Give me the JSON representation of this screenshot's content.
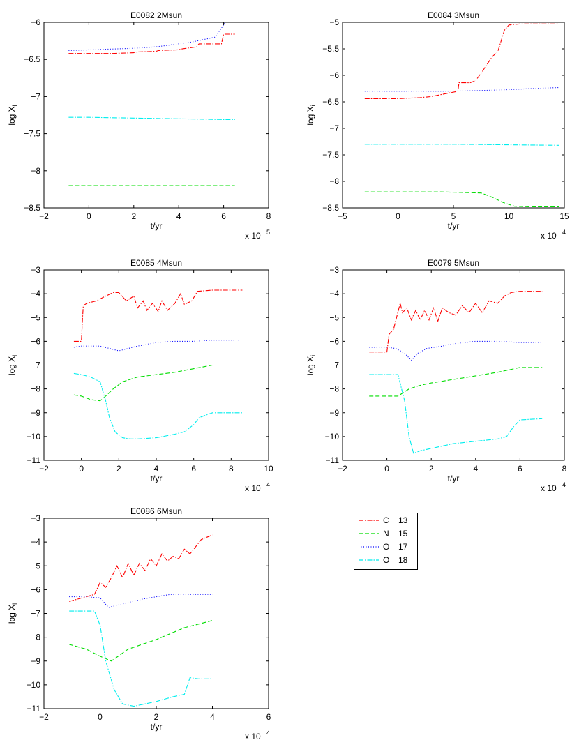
{
  "chart_data": [
    {
      "type": "line",
      "title": "E0082 2Msun",
      "xlabel": "t/yr",
      "ylabel": "log X",
      "ylabel_sub": "i",
      "x_multiplier": "x 10",
      "x_exponent": "5",
      "xlim": [
        -2,
        8
      ],
      "ylim": [
        -8.5,
        -6
      ],
      "xticks": [
        -2,
        0,
        2,
        4,
        6,
        8
      ],
      "yticks": [
        -8.5,
        -8,
        -7.5,
        -7,
        -6.5,
        -6
      ],
      "series": [
        {
          "name": "C 13",
          "x": [
            -0.9,
            0,
            1,
            2,
            2.1,
            3,
            3.1,
            4,
            4.1,
            4.8,
            4.9,
            5.9,
            6,
            6.5
          ],
          "y": [
            -6.42,
            -6.42,
            -6.42,
            -6.41,
            -6.4,
            -6.39,
            -6.38,
            -6.37,
            -6.36,
            -6.33,
            -6.29,
            -6.29,
            -6.16,
            -6.16
          ]
        },
        {
          "name": "N 15",
          "x": [
            -0.9,
            0,
            2,
            4,
            6,
            6.5
          ],
          "y": [
            -8.2,
            -8.2,
            -8.2,
            -8.2,
            -8.2,
            -8.2
          ]
        },
        {
          "name": "O 17",
          "x": [
            -0.9,
            0,
            1,
            2,
            3,
            3.5,
            4.5,
            5,
            5.6,
            5.8,
            6.1,
            6.5
          ],
          "y": [
            -6.38,
            -6.37,
            -6.36,
            -6.35,
            -6.33,
            -6.31,
            -6.27,
            -6.24,
            -6.2,
            -6.12,
            -5.99,
            -5.93
          ]
        },
        {
          "name": "O 18",
          "x": [
            -0.9,
            0,
            2,
            4,
            6,
            6.5
          ],
          "y": [
            -7.28,
            -7.28,
            -7.29,
            -7.3,
            -7.31,
            -7.31
          ]
        }
      ]
    },
    {
      "type": "line",
      "title": "E0084 3Msun",
      "xlabel": "t/yr",
      "ylabel": "log X",
      "ylabel_sub": "i",
      "x_multiplier": "x 10",
      "x_exponent": "4",
      "xlim": [
        -5,
        15
      ],
      "ylim": [
        -8.5,
        -5
      ],
      "xticks": [
        -5,
        0,
        5,
        10,
        15
      ],
      "yticks": [
        -8.5,
        -8,
        -7.5,
        -7,
        -6.5,
        -6,
        -5.5,
        -5
      ],
      "series": [
        {
          "name": "C 13",
          "x": [
            -3,
            0,
            2,
            3,
            5.4,
            5.5,
            6.5,
            7,
            7.6,
            8,
            8.5,
            9,
            9.3,
            9.6,
            10,
            11,
            14.5
          ],
          "y": [
            -6.44,
            -6.44,
            -6.42,
            -6.4,
            -6.3,
            -6.14,
            -6.14,
            -6.1,
            -5.93,
            -5.8,
            -5.65,
            -5.55,
            -5.35,
            -5.15,
            -5.05,
            -5.03,
            -5.03
          ]
        },
        {
          "name": "N 15",
          "x": [
            -3,
            0,
            4,
            7.5,
            8.5,
            9.5,
            10.5,
            12,
            14.5
          ],
          "y": [
            -8.2,
            -8.2,
            -8.2,
            -8.22,
            -8.3,
            -8.4,
            -8.47,
            -8.48,
            -8.48
          ]
        },
        {
          "name": "O 17",
          "x": [
            -3,
            0,
            4,
            7,
            10,
            12,
            14.5
          ],
          "y": [
            -6.3,
            -6.3,
            -6.3,
            -6.29,
            -6.27,
            -6.25,
            -6.23
          ]
        },
        {
          "name": "O 18",
          "x": [
            -3,
            0,
            5,
            10,
            14.5
          ],
          "y": [
            -7.3,
            -7.3,
            -7.3,
            -7.31,
            -7.32
          ]
        }
      ]
    },
    {
      "type": "line",
      "title": "E0085 4Msun",
      "xlabel": "t/yr",
      "ylabel": "log X",
      "ylabel_sub": "i",
      "x_multiplier": "x 10",
      "x_exponent": "4",
      "xlim": [
        -2,
        10
      ],
      "ylim": [
        -11,
        -3
      ],
      "xticks": [
        -2,
        0,
        2,
        4,
        6,
        8,
        10
      ],
      "yticks": [
        -11,
        -10,
        -9,
        -8,
        -7,
        -6,
        -5,
        -4,
        -3
      ],
      "series": [
        {
          "name": "C 13",
          "x": [
            -0.4,
            0,
            0.05,
            0.1,
            0.3,
            0.8,
            1.3,
            1.7,
            2.0,
            2.4,
            2.8,
            3.0,
            3.3,
            3.5,
            3.8,
            4.1,
            4.3,
            4.6,
            5,
            5.3,
            5.5,
            5.9,
            6.2,
            7,
            8,
            8.6
          ],
          "y": [
            -6.0,
            -6.0,
            -5.2,
            -4.5,
            -4.4,
            -4.3,
            -4.1,
            -3.95,
            -3.95,
            -4.3,
            -4.1,
            -4.6,
            -4.3,
            -4.7,
            -4.4,
            -4.75,
            -4.3,
            -4.7,
            -4.4,
            -4.0,
            -4.45,
            -4.3,
            -3.9,
            -3.85,
            -3.85,
            -3.85
          ]
        },
        {
          "name": "N 15",
          "x": [
            -0.4,
            0,
            0.5,
            1,
            1.3,
            1.7,
            2.2,
            3,
            5,
            7,
            8.6
          ],
          "y": [
            -8.25,
            -8.3,
            -8.45,
            -8.5,
            -8.3,
            -8.0,
            -7.7,
            -7.5,
            -7.3,
            -7.0,
            -7.0
          ]
        },
        {
          "name": "O 17",
          "x": [
            -0.4,
            0,
            1,
            2,
            3,
            4,
            5,
            6,
            7,
            8.6
          ],
          "y": [
            -6.25,
            -6.2,
            -6.2,
            -6.4,
            -6.2,
            -6.05,
            -6.0,
            -6.0,
            -5.95,
            -5.95
          ]
        },
        {
          "name": "O 18",
          "x": [
            -0.4,
            0,
            0.5,
            1.0,
            1.3,
            1.5,
            1.8,
            2.2,
            2.6,
            3,
            4,
            5,
            5.5,
            6,
            6.3,
            7,
            8.6
          ],
          "y": [
            -7.35,
            -7.4,
            -7.5,
            -7.7,
            -8.5,
            -9.2,
            -9.8,
            -10.05,
            -10.1,
            -10.1,
            -10.05,
            -9.9,
            -9.8,
            -9.5,
            -9.2,
            -9.0,
            -9.0
          ]
        }
      ]
    },
    {
      "type": "line",
      "title": "E0079 5Msun",
      "xlabel": "t/yr",
      "ylabel": "log X",
      "ylabel_sub": "i",
      "x_multiplier": "x 10",
      "x_exponent": "4",
      "xlim": [
        -2,
        8
      ],
      "ylim": [
        -11,
        -3
      ],
      "xticks": [
        -2,
        0,
        2,
        4,
        6,
        8
      ],
      "yticks": [
        -11,
        -10,
        -9,
        -8,
        -7,
        -6,
        -5,
        -4,
        -3
      ],
      "series": [
        {
          "name": "C 13",
          "x": [
            -0.8,
            0,
            0.1,
            0.3,
            0.6,
            0.7,
            0.9,
            1.1,
            1.3,
            1.5,
            1.7,
            1.9,
            2.1,
            2.3,
            2.5,
            2.8,
            3.1,
            3.4,
            3.7,
            4.0,
            4.3,
            4.6,
            5.0,
            5.3,
            5.6,
            6,
            7
          ],
          "y": [
            -6.45,
            -6.45,
            -5.7,
            -5.5,
            -4.4,
            -4.8,
            -4.6,
            -5.1,
            -4.7,
            -5.1,
            -4.7,
            -5.1,
            -4.6,
            -5.15,
            -4.6,
            -4.8,
            -4.9,
            -4.5,
            -4.8,
            -4.4,
            -4.8,
            -4.3,
            -4.4,
            -4.1,
            -3.95,
            -3.9,
            -3.9
          ]
        },
        {
          "name": "N 15",
          "x": [
            -0.8,
            0,
            0.5,
            1,
            1.5,
            2,
            3,
            4,
            5,
            6,
            7
          ],
          "y": [
            -8.3,
            -8.3,
            -8.3,
            -8.0,
            -7.85,
            -7.75,
            -7.6,
            -7.45,
            -7.3,
            -7.1,
            -7.1
          ]
        },
        {
          "name": "O 17",
          "x": [
            -0.8,
            0,
            0.4,
            0.8,
            1.1,
            1.4,
            1.8,
            2.5,
            3,
            4,
            5,
            6,
            7
          ],
          "y": [
            -6.25,
            -6.25,
            -6.3,
            -6.5,
            -6.8,
            -6.5,
            -6.3,
            -6.2,
            -6.1,
            -6.0,
            -6.0,
            -6.05,
            -6.05
          ]
        },
        {
          "name": "O 18",
          "x": [
            -0.8,
            0,
            0.5,
            0.8,
            1.0,
            1.2,
            1.5,
            2,
            3,
            4,
            5,
            5.4,
            5.7,
            6,
            7
          ],
          "y": [
            -7.4,
            -7.4,
            -7.4,
            -8.5,
            -10.0,
            -10.7,
            -10.6,
            -10.5,
            -10.3,
            -10.2,
            -10.1,
            -10.0,
            -9.6,
            -9.3,
            -9.25
          ]
        }
      ]
    },
    {
      "type": "line",
      "title": "E0086 6Msun",
      "xlabel": "t/yr",
      "ylabel": "log X",
      "ylabel_sub": "i",
      "x_multiplier": "x 10",
      "x_exponent": "4",
      "xlim": [
        -2,
        6
      ],
      "ylim": [
        -11,
        -3
      ],
      "xticks": [
        -2,
        0,
        2,
        4,
        6
      ],
      "yticks": [
        -11,
        -10,
        -9,
        -8,
        -7,
        -6,
        -5,
        -4,
        -3
      ],
      "series": [
        {
          "name": "C 13",
          "x": [
            -1.1,
            -0.5,
            -0.2,
            0,
            0.2,
            0.4,
            0.6,
            0.8,
            1.0,
            1.2,
            1.4,
            1.6,
            1.8,
            2.0,
            2.2,
            2.4,
            2.6,
            2.8,
            3.0,
            3.2,
            3.4,
            3.6,
            4.0
          ],
          "y": [
            -6.5,
            -6.3,
            -6.2,
            -5.7,
            -5.9,
            -5.5,
            -5.0,
            -5.5,
            -4.9,
            -5.4,
            -4.9,
            -5.2,
            -4.7,
            -5.0,
            -4.5,
            -4.8,
            -4.6,
            -4.7,
            -4.3,
            -4.5,
            -4.2,
            -3.9,
            -3.7
          ]
        },
        {
          "name": "N 15",
          "x": [
            -1.1,
            -0.5,
            0,
            0.4,
            1,
            2,
            3,
            4
          ],
          "y": [
            -8.3,
            -8.5,
            -8.8,
            -9.0,
            -8.5,
            -8.1,
            -7.6,
            -7.3
          ]
        },
        {
          "name": "O 17",
          "x": [
            -1.1,
            -0.5,
            0,
            0.3,
            0.8,
            1.5,
            2.5,
            3.5,
            4
          ],
          "y": [
            -6.3,
            -6.3,
            -6.35,
            -6.75,
            -6.6,
            -6.4,
            -6.2,
            -6.2,
            -6.2
          ]
        },
        {
          "name": "O 18",
          "x": [
            -1.1,
            -0.5,
            -0.2,
            0,
            0.2,
            0.5,
            0.8,
            1.2,
            1.6,
            2,
            2.6,
            3.0,
            3.2,
            3.5,
            4
          ],
          "y": [
            -6.9,
            -6.9,
            -6.9,
            -7.5,
            -9.0,
            -10.2,
            -10.8,
            -10.9,
            -10.8,
            -10.7,
            -10.5,
            -10.4,
            -9.7,
            -9.75,
            -9.75
          ]
        }
      ]
    }
  ],
  "series_styles": [
    {
      "name": "C 13",
      "color": "#ff0000",
      "dash": "7,2,1.5,2"
    },
    {
      "name": "N 15",
      "color": "#00dd00",
      "dash": "6,3"
    },
    {
      "name": "O 17",
      "color": "#0000ff",
      "dash": "1,2.5"
    },
    {
      "name": "O 18",
      "color": "#00eeee",
      "dash": "7,2,1.5,2"
    }
  ],
  "legend": {
    "placement": "lower-right",
    "entries": [
      {
        "element": "C",
        "isotope": "13"
      },
      {
        "element": "N",
        "isotope": "15"
      },
      {
        "element": "O",
        "isotope": "17"
      },
      {
        "element": "O",
        "isotope": "18"
      }
    ]
  }
}
